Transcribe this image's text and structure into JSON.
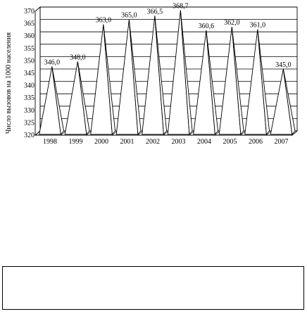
{
  "chart_data": {
    "type": "bar",
    "title": "",
    "ylabel": "Число вызовов на 1000 населения",
    "xlabel": "",
    "categories": [
      "1998",
      "1999",
      "2000",
      "2001",
      "2002",
      "2003",
      "2004",
      "2005",
      "2006",
      "2007"
    ],
    "values": [
      346.0,
      348.0,
      363.0,
      365.0,
      366.5,
      368.7,
      360.6,
      362.0,
      361.0,
      345.0
    ],
    "data_labels": [
      "346,0",
      "348,0",
      "363,0",
      "365,0",
      "366,5",
      "368,7",
      "360,6",
      "362,0",
      "361,0",
      "345,0"
    ],
    "ylim": [
      320,
      370
    ],
    "yticks": [
      "320",
      "325",
      "330",
      "335",
      "340",
      "345",
      "350",
      "355",
      "360",
      "365",
      "370"
    ],
    "grid": true,
    "legend": "none",
    "mark_shape": "pyramid",
    "colors": {
      "line": "#000000",
      "background": "#ffffff"
    }
  }
}
